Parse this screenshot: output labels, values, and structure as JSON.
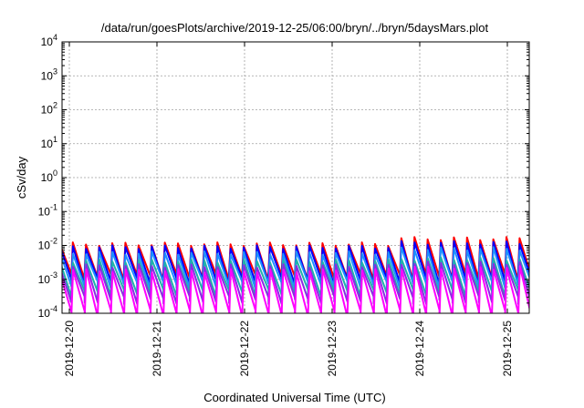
{
  "chart_data": {
    "type": "line",
    "title": "/data/run/goesPlots/archive/2019-12-25/06:00/bryn/../bryn/5daysMars.plot",
    "xlabel": "Coordinated Universal Time (UTC)",
    "ylabel": "cSv/day",
    "xlim": [
      "2019-12-19T22:00",
      "2019-12-25T06:00"
    ],
    "ylim": [
      0.0001,
      10000
    ],
    "yscale": "log",
    "grid": true,
    "legend": "none",
    "x_ticks": [
      "2019-12-20",
      "2019-12-21",
      "2019-12-22",
      "2019-12-23",
      "2019-12-24",
      "2019-12-25"
    ],
    "y_ticks": [
      {
        "base": "10",
        "exp": "-4",
        "value": 0.0001
      },
      {
        "base": "10",
        "exp": "-3",
        "value": 0.001
      },
      {
        "base": "10",
        "exp": "-2",
        "value": 0.01
      },
      {
        "base": "10",
        "exp": "-1",
        "value": 0.1
      },
      {
        "base": "10",
        "exp": "0",
        "value": 1
      },
      {
        "base": "10",
        "exp": "1",
        "value": 10
      },
      {
        "base": "10",
        "exp": "2",
        "value": 100
      },
      {
        "base": "10",
        "exp": "3",
        "value": 1000
      },
      {
        "base": "10",
        "exp": "4",
        "value": 10000
      }
    ],
    "series": [
      {
        "color": "#ff0000",
        "sawtooth": {
          "period_hours": 3.6,
          "peak": 0.011,
          "trough": 0.0012,
          "peak_late": 0.016
        }
      },
      {
        "color": "#0000ff",
        "sawtooth": {
          "period_hours": 3.6,
          "peak": 0.009,
          "trough": 0.0009,
          "peak_late": 0.012
        }
      },
      {
        "color": "#1e90ff",
        "sawtooth": {
          "period_hours": 3.6,
          "peak": 0.006,
          "trough": 0.0007,
          "peak_late": 0.008
        }
      },
      {
        "color": "#20b2aa",
        "sawtooth": {
          "period_hours": 3.6,
          "peak": 0.0035,
          "trough": 0.0004,
          "peak_late": 0.004
        }
      },
      {
        "color": "#8a2be2",
        "sawtooth": {
          "period_hours": 3.6,
          "peak": 0.0025,
          "trough": 0.00025,
          "peak_late": 0.003
        }
      },
      {
        "color": "#ff00ff",
        "sawtooth": {
          "period_hours": 3.6,
          "peak": 0.0018,
          "trough": 0.0001,
          "peak_late": 0.0022
        }
      }
    ]
  }
}
